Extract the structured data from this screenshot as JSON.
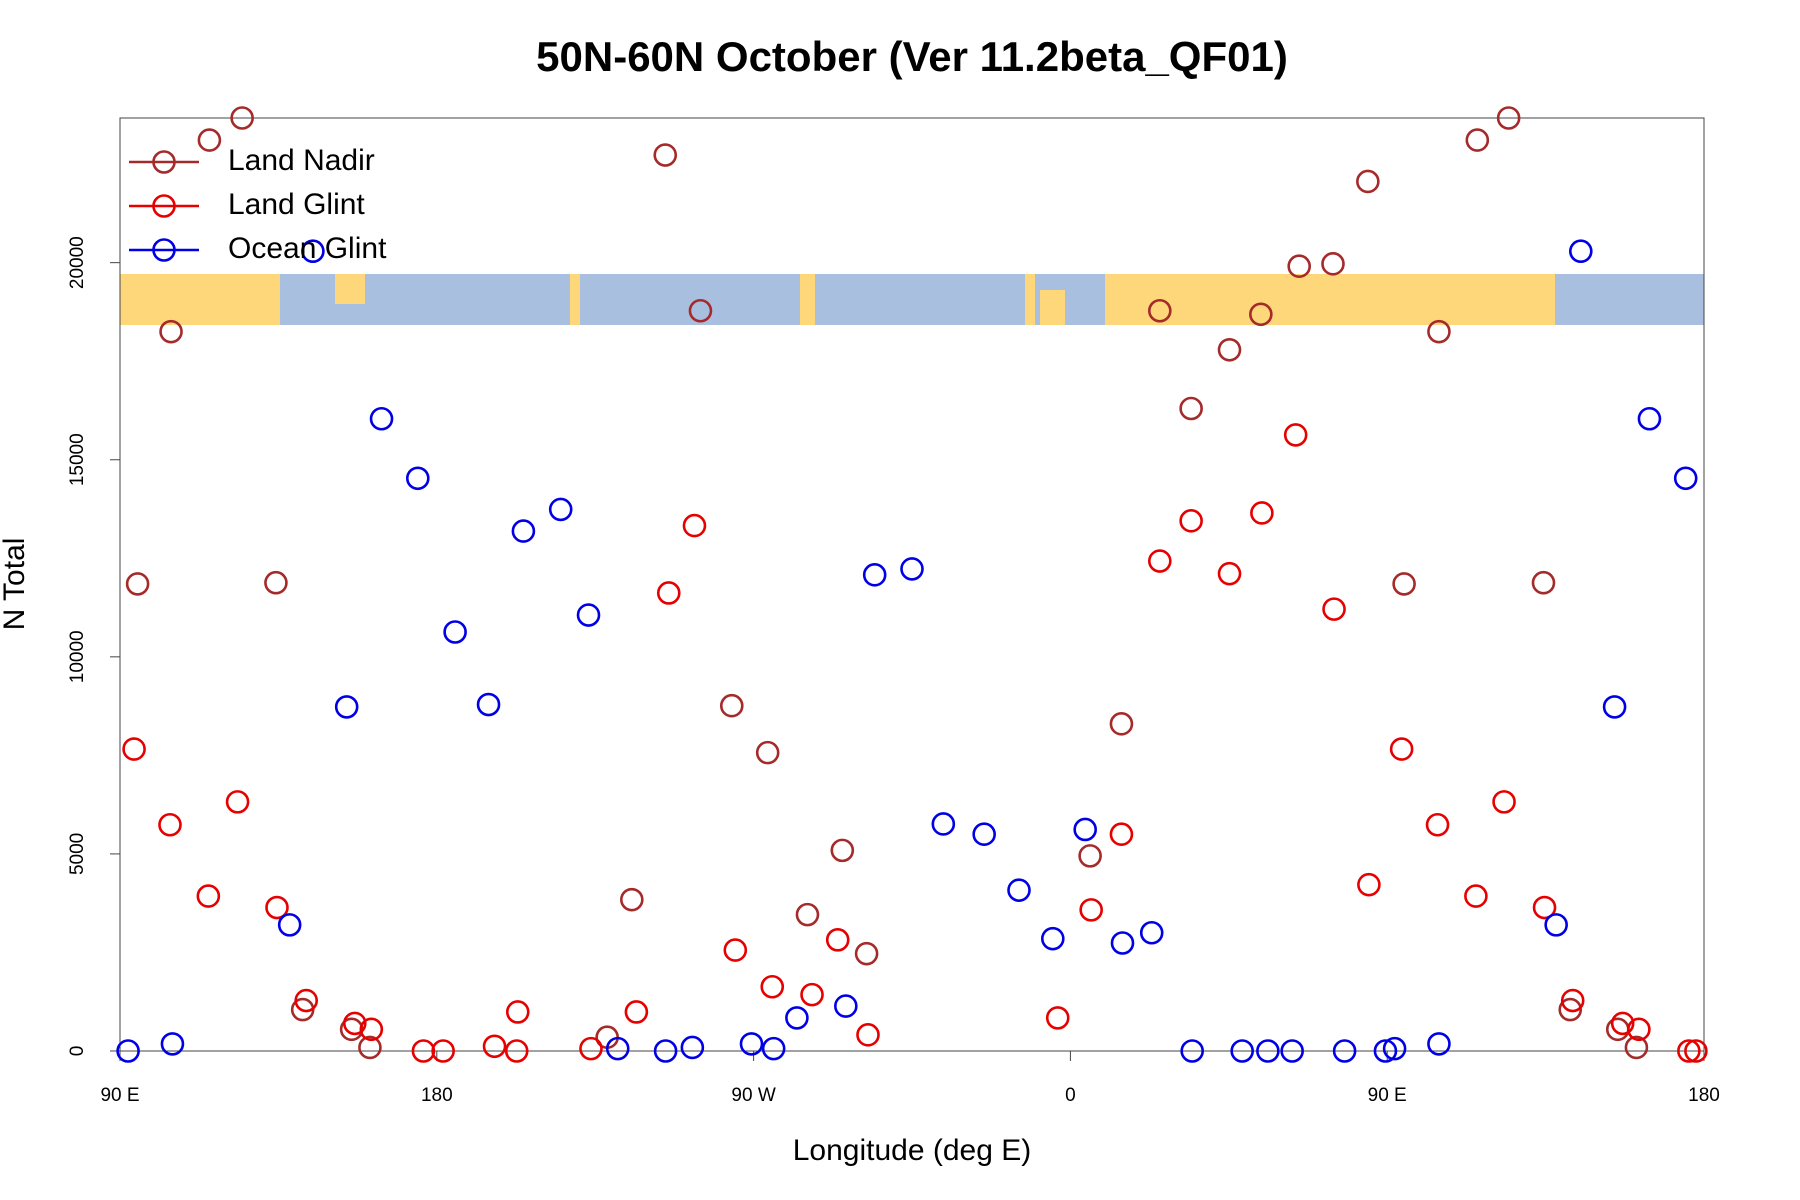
{
  "chart_data": {
    "type": "scatter",
    "title": "50N-60N October (Ver 11.2beta_QF01)",
    "xlabel": "Longitude (deg E)",
    "ylabel": "N Total",
    "xlim": [
      90,
      540
    ],
    "ylim": [
      0,
      23670
    ],
    "xticks": [
      {
        "value": 90,
        "label": "90 E"
      },
      {
        "value": 180,
        "label": "180"
      },
      {
        "value": 270,
        "label": "90 W"
      },
      {
        "value": 360,
        "label": "0"
      },
      {
        "value": 450,
        "label": "90 E"
      },
      {
        "value": 540,
        "label": "180"
      }
    ],
    "yticks": [
      0,
      5000,
      10000,
      15000,
      20000
    ],
    "legend": "top-left",
    "series": [
      {
        "name": "Land Nadir",
        "color": "#a52a2a",
        "x": [
          95.0,
          104.5,
          115.4,
          124.7,
          134.3,
          141.9,
          155.8,
          161.0,
          228.4,
          235.4,
          244.9,
          254.9,
          263.8,
          274.0,
          285.3,
          295.2,
          302.1,
          365.6,
          374.5,
          385.4,
          394.3,
          405.2,
          414.1,
          425.0,
          434.6,
          444.5,
          454.8,
          464.7,
          475.6,
          484.5,
          494.4,
          502.0,
          515.5,
          520.8
        ],
        "values": [
          11850,
          18250,
          23110,
          23670,
          11880,
          1050,
          550,
          90,
          350,
          3840,
          22730,
          18780,
          8760,
          7570,
          3460,
          5090,
          2470,
          4950,
          8300,
          18780,
          16300,
          17790,
          18690,
          19910,
          19970,
          22060,
          11850,
          18250,
          23110,
          23670,
          11880,
          1050,
          550,
          90
        ]
      },
      {
        "name": "Land Glint",
        "color": "#e60000",
        "x": [
          94.0,
          104.2,
          115.1,
          123.4,
          134.6,
          142.9,
          156.7,
          161.4,
          176.2,
          181.8,
          196.4,
          202.7,
          203.0,
          223.8,
          236.7,
          245.9,
          253.2,
          264.8,
          275.3,
          286.6,
          293.9,
          302.5,
          356.4,
          365.9,
          374.5,
          385.4,
          394.3,
          405.2,
          414.4,
          424.0,
          434.9,
          444.8,
          454.1,
          464.3,
          475.2,
          483.2,
          494.7,
          502.7,
          516.9,
          521.5,
          535.7,
          537.7
        ],
        "values": [
          7660,
          5740,
          3930,
          6320,
          3640,
          1280,
          700,
          550,
          0,
          0,
          120,
          0,
          990,
          60,
          990,
          11620,
          13330,
          2560,
          1630,
          1430,
          2820,
          410,
          840,
          3580,
          5500,
          12430,
          13450,
          12110,
          13650,
          15630,
          11210,
          4220,
          7660,
          5740,
          3930,
          6320,
          3640,
          1280,
          700,
          550,
          0,
          0
        ]
      },
      {
        "name": "Ocean Glint",
        "color": "#0000e6",
        "x": [
          92.3,
          104.9,
          138.2,
          144.8,
          154.4,
          164.3,
          174.6,
          185.2,
          194.7,
          204.6,
          215.2,
          223.1,
          231.4,
          245.0,
          252.6,
          269.4,
          275.7,
          282.3,
          296.2,
          304.4,
          315.0,
          323.9,
          335.5,
          345.4,
          355.0,
          364.2,
          374.8,
          383.1,
          394.6,
          408.8,
          416.1,
          423.0,
          437.9,
          449.5,
          452.1,
          464.7,
          498.0,
          505.0,
          514.6,
          524.5,
          534.8
        ],
        "values": [
          0,
          180,
          3200,
          20290,
          8730,
          16040,
          14530,
          10630,
          8790,
          13190,
          13740,
          11060,
          60,
          0,
          90,
          180,
          60,
          840,
          1140,
          12080,
          12230,
          5760,
          5500,
          4080,
          2850,
          5620,
          2740,
          3000,
          0,
          0,
          0,
          0,
          0,
          0,
          60,
          180,
          3200,
          20290,
          8730,
          16040,
          14530
        ]
      }
    ]
  }
}
